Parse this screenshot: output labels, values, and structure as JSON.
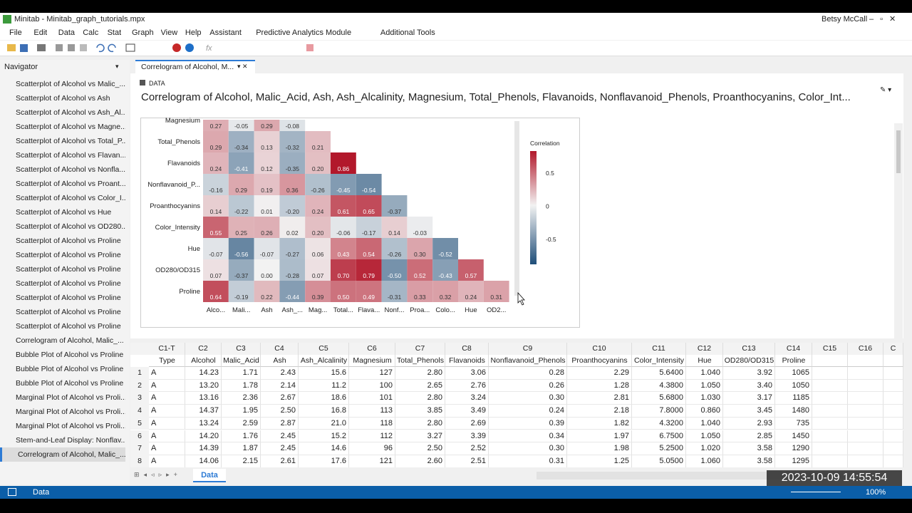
{
  "window": {
    "title": "Minitab - Minitab_graph_tutorials.mpx",
    "user": "Betsy McCall"
  },
  "menu": [
    "File",
    "Edit",
    "Data",
    "Calc",
    "Stat",
    "Graph",
    "View",
    "Help",
    "Assistant",
    "Predictive Analytics Module",
    "Additional Tools"
  ],
  "navigator": {
    "title": "Navigator",
    "items": [
      "Scatterplot of Alcohol vs Malic_...",
      "Scatterplot of Alcohol vs Ash",
      "Scatterplot of Alcohol vs Ash_Al...",
      "Scatterplot of Alcohol vs Magne...",
      "Scatterplot of Alcohol vs Total_P...",
      "Scatterplot of Alcohol vs Flavan...",
      "Scatterplot of Alcohol vs Nonfla...",
      "Scatterplot of Alcohol vs Proant...",
      "Scatterplot of Alcohol vs Color_I...",
      "Scatterplot of Alcohol vs Hue",
      "Scatterplot of Alcohol vs OD280...",
      "Scatterplot of Alcohol vs Proline",
      "Scatterplot of Alcohol vs Proline",
      "Scatterplot of Alcohol vs Proline",
      "Scatterplot of Alcohol vs Proline",
      "Scatterplot of Alcohol vs Proline",
      "Scatterplot of Alcohol vs Proline",
      "Scatterplot of Alcohol vs Proline",
      "Correlogram of Alcohol, Malic_...",
      "Bubble Plot of Alcohol vs Proline",
      "Bubble Plot of Alcohol vs Proline",
      "Bubble Plot of Alcohol vs Proline",
      "Marginal Plot of Alcohol vs Proli...",
      "Marginal Plot of Alcohol vs Proli...",
      "Marginal Plot of Alcohol vs Proli...",
      "Stem-and-Leaf Display: Nonflav...",
      "Correlogram of Alcohol, Malic_..."
    ]
  },
  "tab": {
    "label": "Correlogram of Alcohol, M..."
  },
  "output": {
    "label": "DATA",
    "title": "Correlogram of Alcohol, Malic_Acid, Ash, Ash_Alcalinity, Magnesium, Total_Phenols, Flavanoids, Nonflavanoid_Phenols, Proanthocyanins, Color_Int..."
  },
  "correlogram": {
    "row_labels": [
      "Magnesium",
      "Total_Phenols",
      "Flavanoids",
      "Nonflavanoid_P...",
      "Proanthocyanins",
      "Color_Intensity",
      "Hue",
      "OD280/OD315",
      "Proline"
    ],
    "column_labels": [
      "Alco...",
      "Mali...",
      "Ash",
      "Ash_...",
      "Mag...",
      "Total...",
      "Flava...",
      "Nonf...",
      "Proa...",
      "Colo...",
      "Hue",
      "OD2..."
    ],
    "cells": [
      [
        "0.27",
        "-0.05",
        "0.29",
        "-0.08"
      ],
      [
        "0.29",
        "-0.34",
        "0.13",
        "-0.32",
        "0.21"
      ],
      [
        "0.24",
        "-0.41",
        "0.12",
        "-0.35",
        "0.20",
        "0.86"
      ],
      [
        "-0.16",
        "0.29",
        "0.19",
        "0.36",
        "-0.26",
        "-0.45",
        "-0.54"
      ],
      [
        "0.14",
        "-0.22",
        "0.01",
        "-0.20",
        "0.24",
        "0.61",
        "0.65",
        "-0.37"
      ],
      [
        "0.55",
        "0.25",
        "0.26",
        "0.02",
        "0.20",
        "-0.06",
        "-0.17",
        "0.14",
        "-0.03"
      ],
      [
        "-0.07",
        "-0.56",
        "-0.07",
        "-0.27",
        "0.06",
        "0.43",
        "0.54",
        "-0.26",
        "0.30",
        "-0.52"
      ],
      [
        "0.07",
        "-0.37",
        "0.00",
        "-0.28",
        "0.07",
        "0.70",
        "0.79",
        "-0.50",
        "0.52",
        "-0.43",
        "0.57"
      ],
      [
        "0.64",
        "-0.19",
        "0.22",
        "-0.44",
        "0.39",
        "0.50",
        "0.49",
        "-0.31",
        "0.33",
        "0.32",
        "0.24",
        "0.31"
      ]
    ],
    "legend": {
      "title": "Correlation",
      "ticks": [
        "0.5",
        "0",
        "-0.5"
      ]
    }
  },
  "worksheet": {
    "column_ids": [
      "C1-T",
      "C2",
      "C3",
      "C4",
      "C5",
      "C6",
      "C7",
      "C8",
      "C9",
      "C10",
      "C11",
      "C12",
      "C13",
      "C14",
      "C15",
      "C16",
      "C"
    ],
    "column_names": [
      "Type",
      "Alcohol",
      "Malic_Acid",
      "Ash",
      "Ash_Alcalinity",
      "Magnesium",
      "Total_Phenols",
      "Flavanoids",
      "Nonflavanoid_Phenols",
      "Proanthocyanins",
      "Color_Intensity",
      "Hue",
      "OD280/OD315",
      "Proline"
    ],
    "row_numbers": [
      "1",
      "2",
      "3",
      "4",
      "5",
      "6",
      "7",
      "8"
    ],
    "rows": [
      [
        "A",
        "14.23",
        "1.71",
        "2.43",
        "15.6",
        "127",
        "2.80",
        "3.06",
        "0.28",
        "2.29",
        "5.6400",
        "1.040",
        "3.92",
        "1065"
      ],
      [
        "A",
        "13.20",
        "1.78",
        "2.14",
        "11.2",
        "100",
        "2.65",
        "2.76",
        "0.26",
        "1.28",
        "4.3800",
        "1.050",
        "3.40",
        "1050"
      ],
      [
        "A",
        "13.16",
        "2.36",
        "2.67",
        "18.6",
        "101",
        "2.80",
        "3.24",
        "0.30",
        "2.81",
        "5.6800",
        "1.030",
        "3.17",
        "1185"
      ],
      [
        "A",
        "14.37",
        "1.95",
        "2.50",
        "16.8",
        "113",
        "3.85",
        "3.49",
        "0.24",
        "2.18",
        "7.8000",
        "0.860",
        "3.45",
        "1480"
      ],
      [
        "A",
        "13.24",
        "2.59",
        "2.87",
        "21.0",
        "118",
        "2.80",
        "2.69",
        "0.39",
        "1.82",
        "4.3200",
        "1.040",
        "2.93",
        "735"
      ],
      [
        "A",
        "14.20",
        "1.76",
        "2.45",
        "15.2",
        "112",
        "3.27",
        "3.39",
        "0.34",
        "1.97",
        "6.7500",
        "1.050",
        "2.85",
        "1450"
      ],
      [
        "A",
        "14.39",
        "1.87",
        "2.45",
        "14.6",
        "96",
        "2.50",
        "2.52",
        "0.30",
        "1.98",
        "5.2500",
        "1.020",
        "3.58",
        "1290"
      ],
      [
        "A",
        "14.06",
        "2.15",
        "2.61",
        "17.6",
        "121",
        "2.60",
        "2.51",
        "0.31",
        "1.25",
        "5.0500",
        "1.060",
        "3.58",
        "1295"
      ]
    ]
  },
  "sheet": {
    "tab": "Data"
  },
  "status": {
    "text": "Data",
    "zoom": "100%"
  },
  "overlay": {
    "timestamp": "2023-10-09 14:55:54"
  }
}
